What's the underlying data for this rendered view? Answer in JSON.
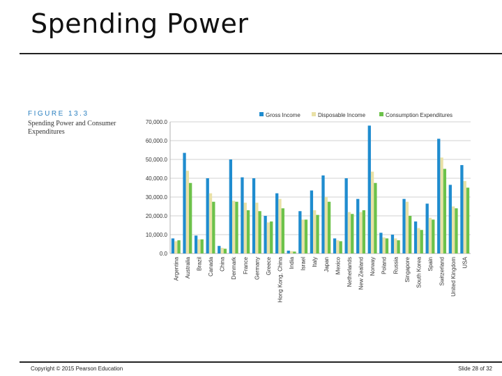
{
  "slide": {
    "title": "Spending Power",
    "figure_label": "FIGURE 13.3",
    "figure_caption": "Spending Power and Consumer Expenditures",
    "copyright": "Copyright © 2015 Pearson Education",
    "slide_number": "Slide 28 of 32"
  },
  "chart_data": {
    "type": "bar",
    "title": "",
    "xlabel": "",
    "ylabel": "",
    "ylim": [
      0,
      70000
    ],
    "yticks": [
      0,
      10000,
      20000,
      30000,
      40000,
      50000,
      60000,
      70000
    ],
    "ytick_labels": [
      "0.0",
      "10,000.0",
      "20,000.0",
      "30,000.0",
      "40,000.0",
      "50,000.0",
      "60,000.0",
      "70,000.0"
    ],
    "grid": true,
    "legend_position": "top",
    "categories": [
      "Argentina",
      "Australia",
      "Brazil",
      "Canada",
      "China",
      "Denmark",
      "France",
      "Germany",
      "Greece",
      "Hong Kong, China",
      "India",
      "Israel",
      "Italy",
      "Japan",
      "Mexico",
      "Netherlands",
      "New Zealand",
      "Norway",
      "Poland",
      "Russia",
      "Singapore",
      "South Korea",
      "Spain",
      "Switzerland",
      "United Kingdom",
      "USA"
    ],
    "series": [
      {
        "name": "Gross Income",
        "color": "#1f8ccf",
        "values": [
          8000,
          53500,
          9500,
          40000,
          4000,
          50000,
          40500,
          40000,
          20000,
          32000,
          1500,
          22500,
          33500,
          41500,
          8000,
          40000,
          29000,
          68000,
          11000,
          10000,
          29000,
          17000,
          26500,
          61000,
          36500,
          47000
        ]
      },
      {
        "name": "Disposable Income",
        "color": "#e9e1a6",
        "values": [
          6500,
          44000,
          7500,
          32000,
          3000,
          28000,
          27000,
          27000,
          16500,
          29000,
          1200,
          18000,
          23000,
          30000,
          7000,
          22000,
          22000,
          43500,
          8500,
          8000,
          27500,
          13500,
          19000,
          51000,
          25000,
          38500
        ]
      },
      {
        "name": "Consumption Expenditures",
        "color": "#6cc24a",
        "values": [
          7000,
          37500,
          7500,
          27500,
          2500,
          27500,
          23000,
          22500,
          17000,
          24000,
          1000,
          18000,
          20500,
          27500,
          6500,
          21000,
          23000,
          37500,
          8000,
          7000,
          20000,
          12500,
          18000,
          45000,
          24000,
          35000
        ]
      }
    ]
  }
}
